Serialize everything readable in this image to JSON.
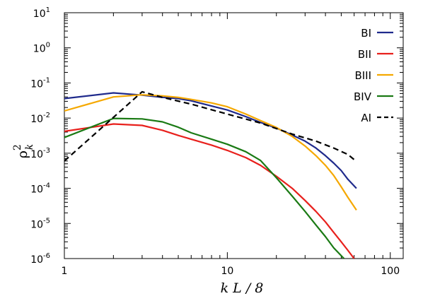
{
  "chart_data": {
    "type": "line",
    "x_scale": "log",
    "y_scale": "log",
    "xlim": [
      1,
      120
    ],
    "ylim": [
      1e-06,
      10
    ],
    "xlabel": "k  L / 8",
    "ylabel": "ρ 2 k",
    "ylabel_parts": {
      "base": "ρ",
      "sup": "2",
      "sub": "k"
    },
    "x_ticks": [
      {
        "value": 1,
        "label": "1"
      },
      {
        "value": 10,
        "label": "10"
      },
      {
        "value": 100,
        "label": "100"
      }
    ],
    "y_ticks": [
      {
        "value": 1e-06,
        "base": "10",
        "exp": "-6"
      },
      {
        "value": 1e-05,
        "base": "10",
        "exp": "-5"
      },
      {
        "value": 0.0001,
        "base": "10",
        "exp": "-4"
      },
      {
        "value": 0.001,
        "base": "10",
        "exp": "-3"
      },
      {
        "value": 0.01,
        "base": "10",
        "exp": "-2"
      },
      {
        "value": 0.1,
        "base": "10",
        "exp": "-1"
      },
      {
        "value": 1,
        "base": "10",
        "exp": "0"
      },
      {
        "value": 10,
        "base": "10",
        "exp": "1"
      }
    ],
    "grid": false,
    "legend_position": "top-right",
    "series": [
      {
        "name": "BI",
        "color": "#1f2a8c",
        "dash": "solid",
        "points": [
          [
            1,
            0.036
          ],
          [
            2,
            0.052
          ],
          [
            3,
            0.045
          ],
          [
            4,
            0.039
          ],
          [
            5,
            0.036
          ],
          [
            6,
            0.031
          ],
          [
            8,
            0.022
          ],
          [
            10,
            0.017
          ],
          [
            13,
            0.011
          ],
          [
            16,
            0.0075
          ],
          [
            20,
            0.0052
          ],
          [
            25,
            0.0033
          ],
          [
            30,
            0.0022
          ],
          [
            35,
            0.0014
          ],
          [
            40,
            0.00085
          ],
          [
            45,
            0.00052
          ],
          [
            50,
            0.00032
          ],
          [
            55,
            0.00018
          ],
          [
            62,
            0.0001
          ]
        ]
      },
      {
        "name": "BII",
        "color": "#e8201c",
        "dash": "solid",
        "points": [
          [
            1,
            0.0042
          ],
          [
            2,
            0.0068
          ],
          [
            3,
            0.0062
          ],
          [
            4,
            0.0045
          ],
          [
            5,
            0.0032
          ],
          [
            6,
            0.0025
          ],
          [
            8,
            0.0017
          ],
          [
            10,
            0.0012
          ],
          [
            13,
            0.00075
          ],
          [
            16,
            0.00045
          ],
          [
            20,
            0.00022
          ],
          [
            25,
            0.0001
          ],
          [
            30,
            4.5e-05
          ],
          [
            35,
            2.2e-05
          ],
          [
            40,
            1.1e-05
          ],
          [
            45,
            5.5e-06
          ],
          [
            50,
            3e-06
          ],
          [
            55,
            1.7e-06
          ],
          [
            60,
            1e-06
          ]
        ]
      },
      {
        "name": "BIII",
        "color": "#f5a800",
        "dash": "solid",
        "points": [
          [
            1,
            0.016
          ],
          [
            2,
            0.04
          ],
          [
            3,
            0.046
          ],
          [
            4,
            0.043
          ],
          [
            5,
            0.039
          ],
          [
            6,
            0.034
          ],
          [
            8,
            0.027
          ],
          [
            10,
            0.021
          ],
          [
            13,
            0.013
          ],
          [
            16,
            0.0085
          ],
          [
            20,
            0.0054
          ],
          [
            25,
            0.003
          ],
          [
            30,
            0.0016
          ],
          [
            35,
            0.00085
          ],
          [
            40,
            0.00045
          ],
          [
            45,
            0.00023
          ],
          [
            50,
            0.00011
          ],
          [
            55,
            5.5e-05
          ],
          [
            62,
            2.4e-05
          ]
        ]
      },
      {
        "name": "BIV",
        "color": "#1a7a14",
        "dash": "solid",
        "points": [
          [
            1,
            0.0028
          ],
          [
            2,
            0.0098
          ],
          [
            3,
            0.0095
          ],
          [
            4,
            0.0078
          ],
          [
            5,
            0.0055
          ],
          [
            6,
            0.0038
          ],
          [
            8,
            0.0025
          ],
          [
            10,
            0.0018
          ],
          [
            13,
            0.0011
          ],
          [
            16,
            0.00062
          ],
          [
            20,
            0.0002
          ],
          [
            25,
            6e-05
          ],
          [
            30,
            2.2e-05
          ],
          [
            35,
            9e-06
          ],
          [
            40,
            4.2e-06
          ],
          [
            45,
            2e-06
          ],
          [
            52,
            1e-06
          ]
        ]
      },
      {
        "name": "AI",
        "color": "#000000",
        "dash": "dashed",
        "points": [
          [
            1,
            0.0006
          ],
          [
            2,
            0.0105
          ],
          [
            3,
            0.056
          ],
          [
            4,
            0.039
          ],
          [
            6,
            0.025
          ],
          [
            10,
            0.013
          ],
          [
            16,
            0.0072
          ],
          [
            25,
            0.0035
          ],
          [
            35,
            0.0022
          ],
          [
            45,
            0.0014
          ],
          [
            55,
            0.00092
          ],
          [
            62,
            0.00058
          ]
        ]
      }
    ]
  }
}
